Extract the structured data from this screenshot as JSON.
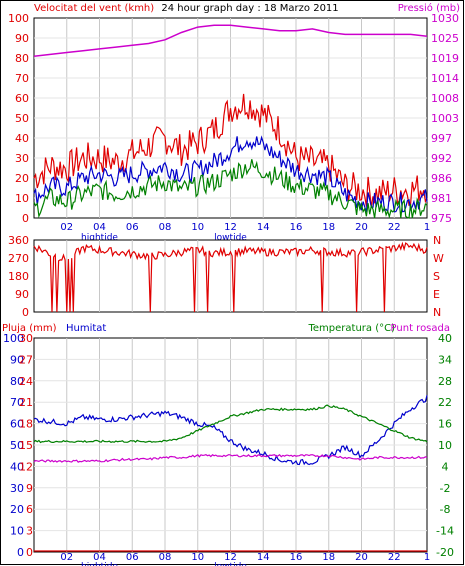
{
  "header": {
    "wind_title": "Velocitat del vent (kmh)",
    "graph_title": "24 hour graph day : 18 Marzo 2011",
    "pressure_title": "Pressió (mb)"
  },
  "colors": {
    "wind_speed": "#e00000",
    "wind_gust": "#e00000",
    "wind_avg_blue": "#0000cc",
    "wind_avg_green": "#008000",
    "pressure": "#cc00cc",
    "direction": "#e00000",
    "rain": "#e00000",
    "humidity": "#0000cc",
    "temperature": "#008000",
    "dewpoint": "#cc00cc",
    "grid": "#d0d0d0",
    "left_axis_text": "#e00000",
    "right_axis_text_top": "#cc00cc",
    "compass_text": "#e00000",
    "bottom_axis_text": "#0000cc",
    "bottom_left_axis_text": "#e00000",
    "bottom_right_axis_text": "#008000"
  },
  "chart_data": [
    {
      "type": "line",
      "title": "24 hour graph day : 18 Marzo 2011",
      "left_label": "Velocitat del vent (kmh)",
      "right_label": "Pressió (mb)",
      "x_tick_labels": [
        "02",
        "04",
        "06",
        "08",
        "10",
        "12",
        "14",
        "16",
        "18",
        "20",
        "22",
        "1"
      ],
      "x_sub_labels": [
        {
          "at": "04",
          "text": "hightide"
        },
        {
          "at": "12",
          "text": "lowtide"
        }
      ],
      "y_left_ticks": [
        "100",
        "90",
        "80",
        "70",
        "60",
        "50",
        "40",
        "30",
        "20",
        "10",
        "0"
      ],
      "y_right_ticks": [
        "1030",
        "1025",
        "1019",
        "1014",
        "1008",
        "1003",
        "997",
        "992",
        "986",
        "981",
        "975"
      ],
      "ylim_left": [
        0,
        100
      ],
      "ylim_right": [
        975,
        1030
      ],
      "x_hours": [
        0,
        1,
        2,
        3,
        4,
        5,
        6,
        7,
        8,
        9,
        10,
        11,
        12,
        13,
        14,
        15,
        16,
        17,
        18,
        19,
        20,
        21,
        22,
        23,
        24
      ],
      "series": [
        {
          "name": "Velocitat del vent (kmh)",
          "axis": "left",
          "values": [
            20,
            26,
            25,
            30,
            30,
            28,
            32,
            36,
            40,
            34,
            38,
            44,
            55,
            58,
            52,
            44,
            30,
            28,
            26,
            16,
            14,
            12,
            14,
            14,
            16
          ]
        },
        {
          "name": "",
          "axis": "left",
          "values": [
            10,
            16,
            15,
            20,
            22,
            20,
            22,
            24,
            26,
            22,
            24,
            28,
            34,
            40,
            36,
            30,
            24,
            22,
            20,
            12,
            8,
            8,
            8,
            8,
            10
          ]
        },
        {
          "name": "",
          "axis": "left",
          "values": [
            4,
            10,
            8,
            12,
            14,
            12,
            14,
            16,
            18,
            14,
            16,
            18,
            22,
            26,
            24,
            20,
            16,
            14,
            12,
            8,
            4,
            4,
            4,
            4,
            6
          ]
        },
        {
          "name": "Pressió (mb)",
          "axis": "right",
          "values": [
            1019.5,
            1020,
            1020.5,
            1021,
            1021.5,
            1022,
            1022.5,
            1023,
            1024,
            1026,
            1027.5,
            1028,
            1028,
            1027.5,
            1027,
            1026.5,
            1026.5,
            1027,
            1026,
            1025.5,
            1025.5,
            1025.5,
            1025.5,
            1025.5,
            1025
          ]
        }
      ]
    },
    {
      "type": "line",
      "left_ticks": [
        "360",
        "270",
        "180",
        "90",
        "0"
      ],
      "right_ticks": [
        "N",
        "W",
        "S",
        "E",
        "N"
      ],
      "ylim": [
        0,
        360
      ],
      "x_hours": [
        0,
        1,
        2,
        3,
        4,
        5,
        6,
        7,
        8,
        9,
        10,
        11,
        12,
        13,
        14,
        15,
        16,
        17,
        18,
        19,
        20,
        21,
        22,
        23,
        24
      ],
      "series": [
        {
          "name": "",
          "values": [
            330,
            290,
            260,
            320,
            310,
            300,
            290,
            280,
            285,
            300,
            310,
            295,
            300,
            305,
            300,
            300,
            300,
            310,
            300,
            295,
            300,
            310,
            320,
            330,
            310
          ]
        }
      ],
      "spikes_to_zero_hours": [
        1.1,
        1.4,
        2.0,
        2.2,
        2.4,
        7.1,
        9.8,
        10.6,
        12.2,
        17.6,
        19.7,
        21.4
      ]
    },
    {
      "type": "line",
      "left_label_1": "Pluja (mm)",
      "left_label_2": "Humitat",
      "right_label": "Temperatura (°C)",
      "right_label_2": "Punt rosada",
      "x_tick_labels": [
        "02",
        "04",
        "06",
        "08",
        "10",
        "12",
        "14",
        "16",
        "18",
        "20",
        "22",
        "1"
      ],
      "x_sub_labels": [
        {
          "at": "04",
          "text": "hightide"
        },
        {
          "at": "12",
          "text": "lowtide"
        }
      ],
      "y_left_outer_ticks": [
        "100",
        "90",
        "80",
        "70",
        "60",
        "50",
        "40",
        "30",
        "20",
        "10",
        "0"
      ],
      "y_left_inner_ticks": [
        "30",
        "27",
        "24",
        "21",
        "18",
        "15",
        "12",
        "9",
        "6",
        "3",
        "0"
      ],
      "y_right_ticks": [
        "40",
        "34",
        "28",
        "22",
        "16",
        "10",
        "4",
        "-2",
        "-8",
        "-14",
        "-20"
      ],
      "ylim_humidity": [
        0,
        100
      ],
      "ylim_rain": [
        0,
        30
      ],
      "ylim_temp": [
        -20,
        40
      ],
      "x_hours": [
        0,
        1,
        2,
        3,
        4,
        5,
        6,
        7,
        8,
        9,
        10,
        11,
        12,
        13,
        14,
        15,
        16,
        17,
        18,
        19,
        20,
        21,
        22,
        23,
        24
      ],
      "series": [
        {
          "name": "Humitat",
          "axis": "humidity",
          "values": [
            62,
            61,
            60,
            63,
            62,
            62,
            63,
            64,
            65,
            63,
            60,
            58,
            52,
            48,
            46,
            43,
            42,
            42,
            45,
            49,
            45,
            52,
            60,
            67,
            72
          ]
        },
        {
          "name": "Temperatura (°C)",
          "axis": "temp",
          "values": [
            11,
            11,
            11,
            11,
            11,
            11,
            11,
            11,
            11,
            12,
            14,
            16,
            18,
            19,
            20,
            20,
            20,
            20,
            21,
            20,
            18,
            16,
            14,
            12,
            11
          ]
        },
        {
          "name": "Punt rosada",
          "axis": "temp",
          "values": [
            5.5,
            5.5,
            5.5,
            5.5,
            5.5,
            5.8,
            6,
            6,
            6.5,
            6.5,
            7,
            7,
            7,
            7,
            7,
            7,
            7,
            7,
            7,
            6.5,
            6,
            6.5,
            6.5,
            6.5,
            6.5
          ]
        },
        {
          "name": "Pluja (mm)",
          "axis": "rain",
          "values": [
            0,
            0,
            0,
            0,
            0,
            0,
            0,
            0,
            0,
            0,
            0,
            0,
            0,
            0,
            0,
            0,
            0,
            0,
            0,
            0,
            0,
            0,
            0,
            0,
            0
          ]
        }
      ]
    }
  ]
}
